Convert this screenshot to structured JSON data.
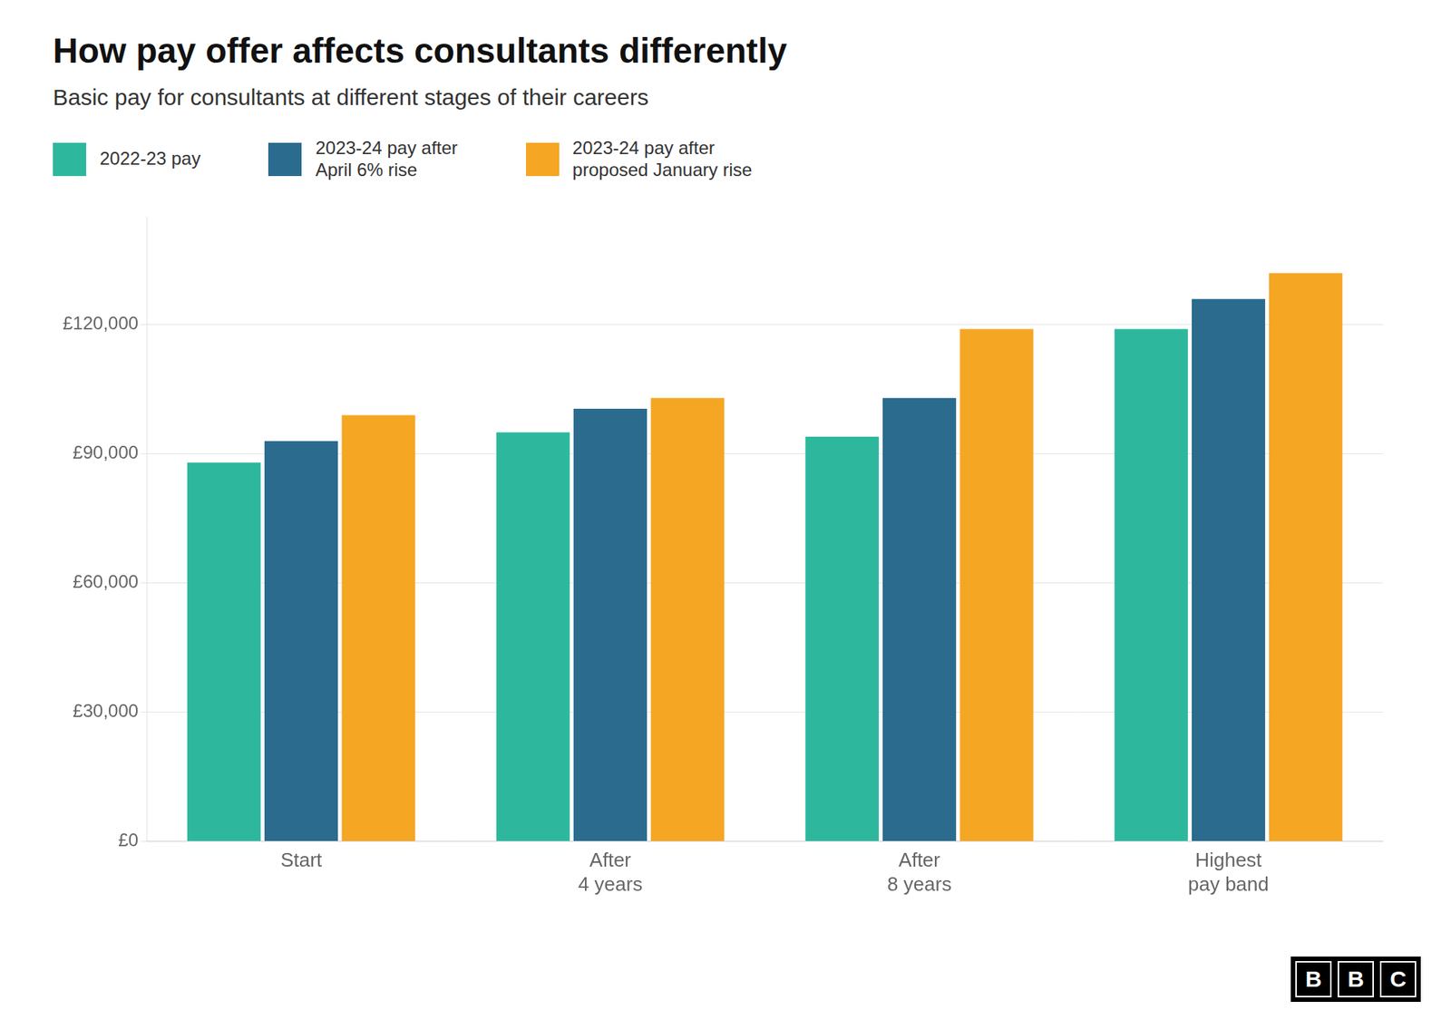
{
  "chart_data": {
    "type": "bar",
    "title": "How pay offer affects consultants differently",
    "subtitle": "Basic pay for consultants at different stages of their careers",
    "categories": [
      "Start",
      "After\n4 years",
      "After\n8 years",
      "Highest\npay band"
    ],
    "series": [
      {
        "name": "2022-23 pay",
        "color": "#2db89e",
        "values": [
          88000,
          95000,
          94000,
          119000
        ]
      },
      {
        "name": "2023-24 pay after\nApril 6% rise",
        "color": "#2b6b8e",
        "values": [
          93000,
          100500,
          103000,
          126000
        ]
      },
      {
        "name": "2023-24 pay after\nproposed January rise",
        "color": "#f5a623",
        "values": [
          99000,
          103000,
          119000,
          132000
        ]
      }
    ],
    "ylim": [
      0,
      145000
    ],
    "yticks": [
      {
        "value": 0,
        "label": "£0"
      },
      {
        "value": 30000,
        "label": "£30,000"
      },
      {
        "value": 60000,
        "label": "£60,000"
      },
      {
        "value": 90000,
        "label": "£90,000"
      },
      {
        "value": 120000,
        "label": "£120,000"
      }
    ],
    "grid": true,
    "annotations": [
      "BBC"
    ]
  }
}
